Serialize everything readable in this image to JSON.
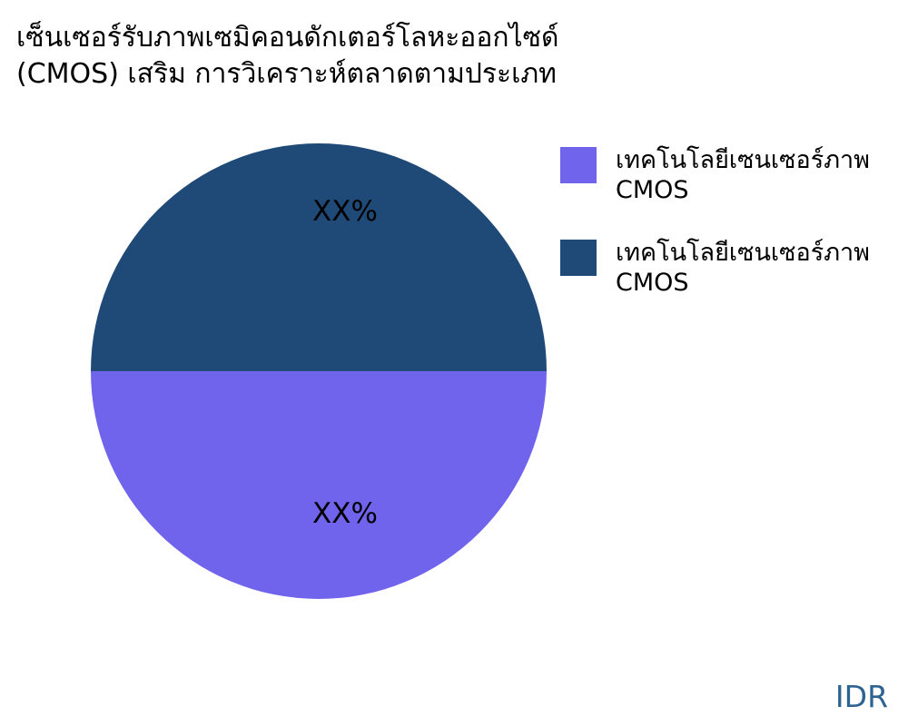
{
  "title": {
    "line1": "เซ็นเซอร์รับภาพเซมิคอนดักเตอร์โลหะออกไซด์",
    "line2": "(CMOS) เสริม การวิเคราะห์ตลาดตามประเภท"
  },
  "chart_data": {
    "type": "pie",
    "title": "เซ็นเซอร์รับภาพเซมิคอนดักเตอร์โลหะออกไซด์ (CMOS) เสริม การวิเคราะห์ตลาดตามประเภท",
    "legend_position": "right",
    "slices": [
      {
        "name": "เทคโนโลยีเซนเซอร์ภาพ CMOS",
        "value": 50,
        "data_label": "XX%",
        "color": "#1F4A78",
        "position": "top-half"
      },
      {
        "name": "เทคโนโลยีเซนเซอร์ภาพ CMOS",
        "value": 50,
        "data_label": "XX%",
        "color": "#7063EC",
        "position": "bottom-half"
      }
    ]
  },
  "pie_labels": {
    "top": "XX%",
    "bottom": "XX%"
  },
  "legend": {
    "items": [
      {
        "label": "เทคโนโลยีเซนเซอร์ภาพ CMOS",
        "color": "#7063EC"
      },
      {
        "label": "เทคโนโลยีเซนเซอร์ภาพ CMOS",
        "color": "#1F4A78"
      }
    ]
  },
  "footer": {
    "currency": "IDR",
    "color": "#2E6391"
  }
}
